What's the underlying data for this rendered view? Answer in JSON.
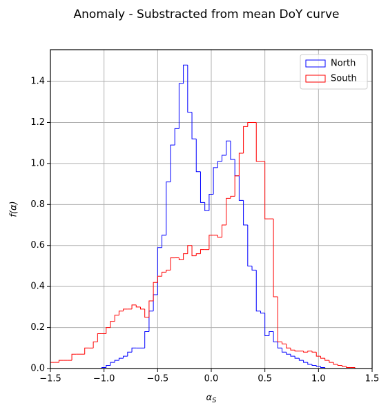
{
  "chart_data": {
    "type": "histogram",
    "title": "Anomaly - Substracted from mean DoY curve",
    "xlabel": "αS",
    "ylabel": "f(α)",
    "bins": [
      -1.5,
      -1.46,
      -1.42,
      -1.38,
      -1.34,
      -1.3,
      -1.26,
      -1.22,
      -1.18,
      -1.14,
      -1.1,
      -1.06,
      -1.02,
      -0.98,
      -0.94,
      -0.9,
      -0.86,
      -0.82,
      -0.78,
      -0.74,
      -0.7,
      -0.66,
      -0.62,
      -0.58,
      -0.54,
      -0.5,
      -0.46,
      -0.42,
      -0.38,
      -0.34,
      -0.3,
      -0.26,
      -0.22,
      -0.18,
      -0.14,
      -0.1,
      -0.06,
      -0.02,
      0.02,
      0.06,
      0.1,
      0.14,
      0.18,
      0.22,
      0.26,
      0.3,
      0.34,
      0.38,
      0.42,
      0.46,
      0.5,
      0.54,
      0.58,
      0.62,
      0.66,
      0.7,
      0.74,
      0.78,
      0.82,
      0.86,
      0.9,
      0.94,
      0.98,
      1.02,
      1.06,
      1.1,
      1.14,
      1.18,
      1.22,
      1.26,
      1.3,
      1.34,
      1.38,
      1.42,
      1.46,
      1.5
    ],
    "series": [
      {
        "name": "North",
        "color": "#0000ff",
        "values": [
          0,
          0,
          0,
          0,
          0,
          0,
          0,
          0,
          0,
          0,
          0,
          0,
          0.005,
          0.015,
          0.03,
          0.04,
          0.05,
          0.06,
          0.08,
          0.1,
          0.1,
          0.1,
          0.18,
          0.28,
          0.36,
          0.59,
          0.65,
          0.91,
          1.09,
          1.17,
          1.39,
          1.48,
          1.25,
          1.12,
          0.96,
          0.81,
          0.77,
          0.85,
          0.98,
          1.01,
          1.04,
          1.11,
          1.02,
          0.94,
          0.82,
          0.7,
          0.5,
          0.48,
          0.28,
          0.27,
          0.16,
          0.18,
          0.13,
          0.1,
          0.08,
          0.07,
          0.06,
          0.05,
          0.04,
          0.03,
          0.02,
          0.015,
          0.01,
          0.005,
          0,
          0,
          0,
          0,
          0,
          0,
          0,
          0,
          0,
          0,
          0
        ]
      },
      {
        "name": "South",
        "color": "#ff0000",
        "values": [
          0.03,
          0.03,
          0.04,
          0.04,
          0.04,
          0.07,
          0.07,
          0.07,
          0.1,
          0.1,
          0.13,
          0.17,
          0.17,
          0.2,
          0.23,
          0.26,
          0.28,
          0.29,
          0.29,
          0.31,
          0.3,
          0.29,
          0.25,
          0.33,
          0.42,
          0.45,
          0.47,
          0.48,
          0.54,
          0.54,
          0.53,
          0.56,
          0.6,
          0.55,
          0.56,
          0.58,
          0.58,
          0.65,
          0.65,
          0.64,
          0.7,
          0.83,
          0.84,
          0.94,
          1.05,
          1.18,
          1.2,
          1.2,
          1.01,
          1.01,
          0.73,
          0.73,
          0.35,
          0.13,
          0.12,
          0.1,
          0.09,
          0.085,
          0.085,
          0.08,
          0.085,
          0.08,
          0.06,
          0.05,
          0.04,
          0.03,
          0.02,
          0.015,
          0.01,
          0.005,
          0.005,
          0,
          0,
          0,
          0
        ]
      }
    ],
    "xlim": [
      -1.5,
      1.5
    ],
    "xticks": [
      {
        "value": -1.5,
        "label": "−1.5"
      },
      {
        "value": -1.0,
        "label": "−1.0"
      },
      {
        "value": -0.5,
        "label": "−0.5"
      },
      {
        "value": 0,
        "label": "0.0"
      },
      0.5,
      {
        "value": 1,
        "label": "1.0"
      },
      1.5
    ],
    "ylim": [
      0,
      1.555
    ],
    "yticks": [
      {
        "value": 0,
        "label": "0.0"
      },
      0.2,
      0.4,
      0.6,
      0.8,
      {
        "value": 1,
        "label": "1.0"
      },
      1.2,
      1.4
    ],
    "grid": true,
    "legend": "upper right"
  }
}
